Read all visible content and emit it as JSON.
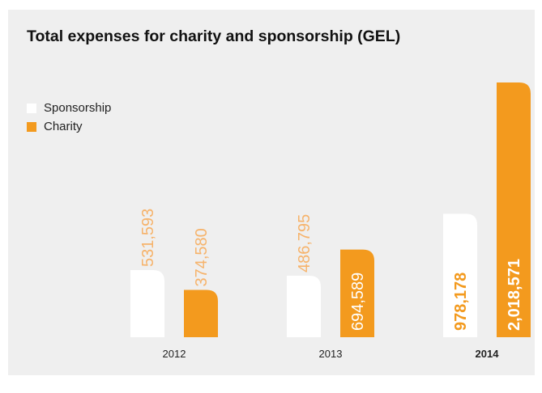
{
  "colors": {
    "background": "#efefef",
    "sponsorship": "#ffffff",
    "charity": "#f39a1e",
    "label_outside": "#f6b36b",
    "label_inside_on_orange": "#ffffff",
    "label_inside_on_white": "#f39a1e"
  },
  "chart_data": {
    "type": "bar",
    "title": "Total expenses for charity and sponsorship (GEL)",
    "categories": [
      "2012",
      "2013",
      "2014"
    ],
    "series": [
      {
        "name": "Sponsorship",
        "values": [
          531593,
          486795,
          978178
        ],
        "labels": [
          "531,593",
          "486,795",
          "978,178"
        ]
      },
      {
        "name": "Charity",
        "values": [
          374580,
          694589,
          2018571
        ],
        "labels": [
          "374,580",
          "694,589",
          "2,018,571"
        ]
      }
    ],
    "highlight_category": "2014",
    "legend_position": "top-left",
    "grid": false
  }
}
